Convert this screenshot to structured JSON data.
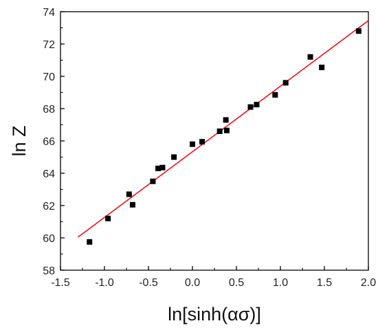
{
  "chart_data": {
    "type": "scatter",
    "xlabel": "ln[sinh(ασ)]",
    "ylabel": "ln Z",
    "xlim": [
      -1.5,
      2.0
    ],
    "ylim": [
      58,
      74
    ],
    "x_ticks": [
      -1.5,
      -1.0,
      -0.5,
      0.0,
      0.5,
      1.0,
      1.5,
      2.0
    ],
    "x_tick_labels": [
      "-1.5",
      "-1.0",
      "-0.5",
      "0.0",
      "0.5",
      "1.0",
      "1.5",
      "2.0"
    ],
    "y_ticks": [
      58,
      60,
      62,
      64,
      66,
      68,
      70,
      72,
      74
    ],
    "y_tick_labels": [
      "58",
      "60",
      "62",
      "64",
      "66",
      "68",
      "70",
      "72",
      "74"
    ],
    "grid": false,
    "legend": "none",
    "series": [
      {
        "marker": "square",
        "color": "#000000",
        "points": [
          {
            "x": -1.17,
            "y": 59.75
          },
          {
            "x": -0.96,
            "y": 61.2
          },
          {
            "x": -0.72,
            "y": 62.7
          },
          {
            "x": -0.68,
            "y": 62.05
          },
          {
            "x": -0.45,
            "y": 63.5
          },
          {
            "x": -0.39,
            "y": 64.3
          },
          {
            "x": -0.34,
            "y": 64.35
          },
          {
            "x": -0.21,
            "y": 65.0
          },
          {
            "x": 0.0,
            "y": 65.8
          },
          {
            "x": 0.11,
            "y": 65.95
          },
          {
            "x": 0.31,
            "y": 66.6
          },
          {
            "x": 0.38,
            "y": 67.3
          },
          {
            "x": 0.39,
            "y": 66.65
          },
          {
            "x": 0.66,
            "y": 68.1
          },
          {
            "x": 0.73,
            "y": 68.25
          },
          {
            "x": 0.94,
            "y": 68.85
          },
          {
            "x": 1.06,
            "y": 69.6
          },
          {
            "x": 1.34,
            "y": 71.2
          },
          {
            "x": 1.47,
            "y": 70.55
          },
          {
            "x": 1.89,
            "y": 72.8
          }
        ]
      }
    ],
    "fit_line": {
      "color": "#e8141a",
      "x_start": -1.3,
      "y_start": 60.05,
      "x_end": 2.0,
      "y_end": 73.45
    }
  }
}
